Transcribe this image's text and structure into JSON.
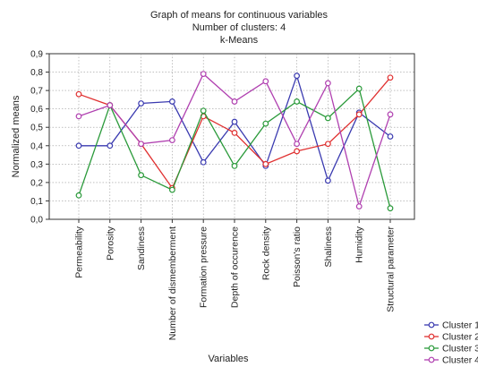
{
  "chart_data": {
    "type": "line",
    "title_lines": [
      "Graph of means for continuous variables",
      "Number of clusters: 4",
      "k-Means"
    ],
    "xlabel": "Variables",
    "ylabel": "Normalized means",
    "ylim": [
      0,
      0.9
    ],
    "yticks": [
      "0,0",
      "0,1",
      "0,2",
      "0,3",
      "0,4",
      "0,5",
      "0,6",
      "0,7",
      "0,8",
      "0,9"
    ],
    "grid": true,
    "legend_position": "bottom-right",
    "categories": [
      "Permeability",
      "Porosity",
      "Sandiness",
      "Number of dismemberment",
      "Formation pressure",
      "Depth of occurence",
      "Rock density",
      "Poisson's ratio",
      "Shaliness",
      "Humidity",
      "Structural parameter"
    ],
    "series": [
      {
        "name": "Cluster 1",
        "color": "#3a3ab0",
        "marker": "circle",
        "values": [
          0.4,
          0.4,
          0.63,
          0.64,
          0.31,
          0.53,
          0.29,
          0.78,
          0.21,
          0.58,
          0.45
        ]
      },
      {
        "name": "Cluster 2",
        "color": "#e03030",
        "marker": "circle",
        "values": [
          0.68,
          0.62,
          0.41,
          0.17,
          0.56,
          0.47,
          0.3,
          0.37,
          0.41,
          0.57,
          0.77
        ]
      },
      {
        "name": "Cluster 3",
        "color": "#2a9a3a",
        "marker": "circle",
        "values": [
          0.13,
          0.62,
          0.24,
          0.16,
          0.59,
          0.29,
          0.52,
          0.64,
          0.55,
          0.71,
          0.06
        ]
      },
      {
        "name": "Cluster 4",
        "color": "#b040b0",
        "marker": "circle",
        "values": [
          0.56,
          0.62,
          0.41,
          0.43,
          0.79,
          0.64,
          0.75,
          0.41,
          0.74,
          0.07,
          0.57
        ]
      }
    ]
  }
}
